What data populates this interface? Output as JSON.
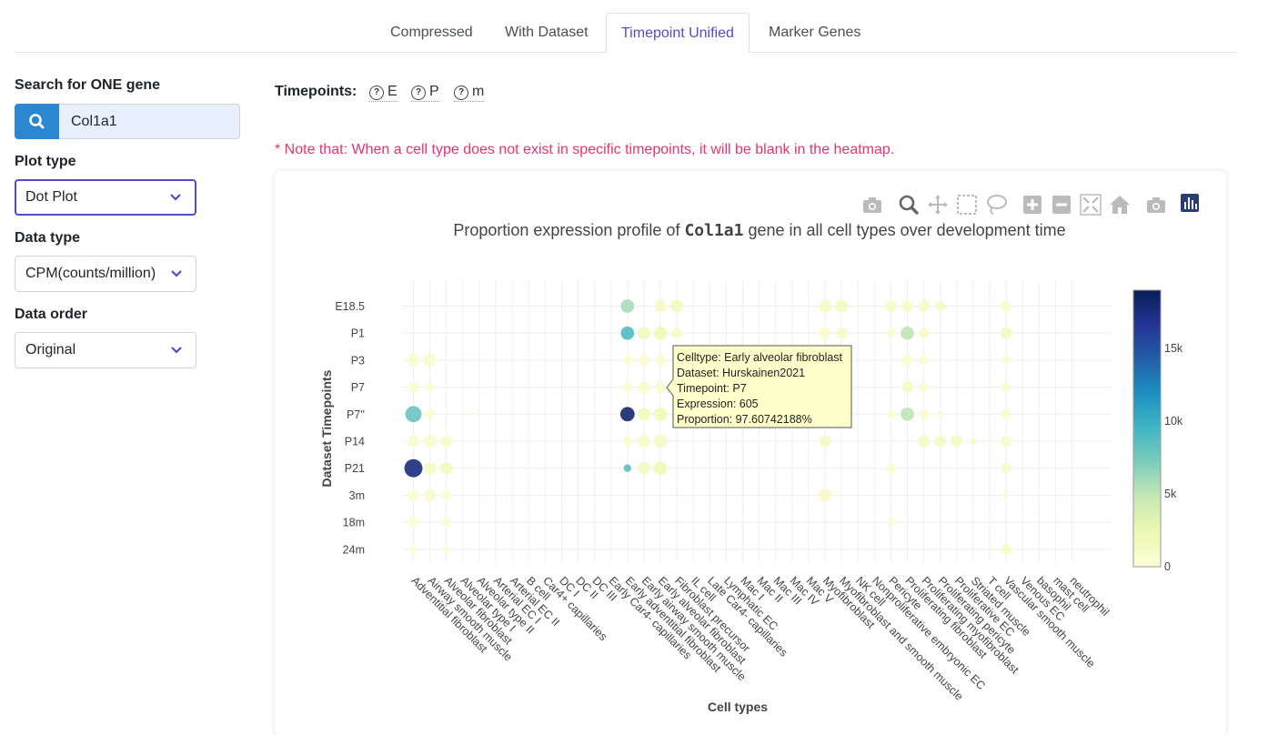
{
  "tabs": [
    "Compressed",
    "With Dataset",
    "Timepoint Unified",
    "Marker Genes"
  ],
  "active_tab": "Timepoint Unified",
  "sidebar": {
    "search_label": "Search for ONE gene",
    "search_value": "Col1a1",
    "plot_type_label": "Plot type",
    "plot_type_value": "Dot Plot",
    "data_type_label": "Data type",
    "data_type_value": "CPM(counts/million)",
    "data_order_label": "Data order",
    "data_order_value": "Original"
  },
  "timepoints": {
    "label": "Timepoints:",
    "items": [
      "E",
      "P",
      "m"
    ]
  },
  "note": "* Note that: When a cell type does not exist in specific timepoints, it will be blank in the heatmap.",
  "modebar_icons": [
    "camera-icon",
    "zoom-icon",
    "pan-icon",
    "box-select-icon",
    "lasso-icon",
    "zoom-in-icon",
    "zoom-out-icon",
    "autoscale-icon",
    "home-icon",
    "camera-icon",
    "plotly-logo-icon"
  ],
  "plot_title": {
    "prefix": "Proportion expression profile of ",
    "gene": "Col1a1",
    "suffix": " gene in all cell types over development time"
  },
  "tooltip": [
    "Celltype: Early alveolar fibroblast",
    "Dataset: Hurskainen2021",
    "Timepoint: P7",
    "Expression: 605",
    "Proportion: 97.60742188%"
  ],
  "chart_data": {
    "type": "scatter",
    "xlabel": "Cell types",
    "ylabel": "Dataset Timepoints",
    "categories": [
      "Adventitial fibroblast",
      "Airway smooth muscle",
      "Alveolar fibroblast",
      "Alveolar type I",
      "Alveolar type II",
      "Arterial EC I",
      "Arterial EC II",
      "B cell",
      "Car4+ capillaries",
      "DC I",
      "DC II",
      "DC III",
      "Early Car4- capillaries",
      "Early adventitial fibroblast",
      "Early airway smooth muscle",
      "Early alveolar fibroblast",
      "Fibroblast precursor",
      "IL cell",
      "Late Car4- capillaries",
      "Lymphatic EC",
      "Mac I",
      "Mac II",
      "Mac III",
      "Mac IV",
      "Mac V",
      "Myofibroblast",
      "Myofibroblast and smooth muscle",
      "NK cell",
      "Nonproliferative embryonic EC",
      "Pericyte",
      "Proliferating fibroblast",
      "Proliferating myofibroblast",
      "Proliferating pericyte",
      "Proliferative EC",
      "Striated muscle",
      "T cell",
      "Vascular smooth muscle",
      "Venous EC",
      "basophil",
      "mast cell",
      "neutrophil"
    ],
    "y_categories": [
      "E18.5",
      "P1",
      "P3",
      "P7",
      "P7''",
      "P14",
      "P21",
      "3m",
      "18m",
      "24m"
    ],
    "colorbar": {
      "min": 0,
      "max": 19000,
      "ticks": [
        0,
        5000,
        10000,
        15000
      ],
      "tick_labels": [
        "0",
        "5k",
        "10k",
        "15k"
      ]
    },
    "points": [
      {
        "x": "Adventitial fibroblast",
        "y": "P3",
        "size": 0.6,
        "value": 800
      },
      {
        "x": "Adventitial fibroblast",
        "y": "P7",
        "size": 0.55,
        "value": 700
      },
      {
        "x": "Adventitial fibroblast",
        "y": "P7''",
        "size": 0.85,
        "value": 8000
      },
      {
        "x": "Adventitial fibroblast",
        "y": "P14",
        "size": 0.6,
        "value": 900
      },
      {
        "x": "Adventitial fibroblast",
        "y": "P21",
        "size": 0.95,
        "value": 17500
      },
      {
        "x": "Adventitial fibroblast",
        "y": "3m",
        "size": 0.6,
        "value": 700
      },
      {
        "x": "Adventitial fibroblast",
        "y": "18m",
        "size": 0.5,
        "value": 600
      },
      {
        "x": "Adventitial fibroblast",
        "y": "24m",
        "size": 0.45,
        "value": 500
      },
      {
        "x": "Airway smooth muscle",
        "y": "P3",
        "size": 0.65,
        "value": 1000
      },
      {
        "x": "Airway smooth muscle",
        "y": "P7",
        "size": 0.45,
        "value": 600
      },
      {
        "x": "Airway smooth muscle",
        "y": "P7''",
        "size": 0.5,
        "value": 600
      },
      {
        "x": "Airway smooth muscle",
        "y": "P14",
        "size": 0.65,
        "value": 900
      },
      {
        "x": "Airway smooth muscle",
        "y": "P21",
        "size": 0.65,
        "value": 1500
      },
      {
        "x": "Airway smooth muscle",
        "y": "3m",
        "size": 0.6,
        "value": 900
      },
      {
        "x": "Alveolar fibroblast",
        "y": "P14",
        "size": 0.6,
        "value": 1000
      },
      {
        "x": "Alveolar fibroblast",
        "y": "P21",
        "size": 0.65,
        "value": 1600
      },
      {
        "x": "Alveolar fibroblast",
        "y": "3m",
        "size": 0.5,
        "value": 700
      },
      {
        "x": "Alveolar fibroblast",
        "y": "18m",
        "size": 0.45,
        "value": 600
      },
      {
        "x": "Alveolar fibroblast",
        "y": "24m",
        "size": 0.35,
        "value": 500
      },
      {
        "x": "Alveolar type II",
        "y": "P7''",
        "size": 0.2,
        "value": 600
      },
      {
        "x": "Alveolar type II",
        "y": "P21",
        "size": 0.15,
        "value": 500
      },
      {
        "x": "Early adventitial fibroblast",
        "y": "E18.5",
        "size": 0.7,
        "value": 5800
      },
      {
        "x": "Early adventitial fibroblast",
        "y": "P1",
        "size": 0.7,
        "value": 9000
      },
      {
        "x": "Early adventitial fibroblast",
        "y": "P3",
        "size": 0.5,
        "value": 800
      },
      {
        "x": "Early adventitial fibroblast",
        "y": "P7",
        "size": 0.5,
        "value": 800
      },
      {
        "x": "Early adventitial fibroblast",
        "y": "P7''",
        "size": 0.75,
        "value": 18000
      },
      {
        "x": "Early adventitial fibroblast",
        "y": "P14",
        "size": 0.5,
        "value": 700
      },
      {
        "x": "Early adventitial fibroblast",
        "y": "P21",
        "size": 0.4,
        "value": 8500
      },
      {
        "x": "Early airway smooth muscle",
        "y": "P1",
        "size": 0.65,
        "value": 1800
      },
      {
        "x": "Early airway smooth muscle",
        "y": "P3",
        "size": 0.55,
        "value": 800
      },
      {
        "x": "Early airway smooth muscle",
        "y": "P7",
        "size": 0.6,
        "value": 900
      },
      {
        "x": "Early airway smooth muscle",
        "y": "P7''",
        "size": 0.65,
        "value": 1800
      },
      {
        "x": "Early airway smooth muscle",
        "y": "P14",
        "size": 0.65,
        "value": 1000
      },
      {
        "x": "Early airway smooth muscle",
        "y": "P21",
        "size": 0.65,
        "value": 1500
      },
      {
        "x": "Early alveolar fibroblast",
        "y": "E18.5",
        "size": 0.65,
        "value": 1200
      },
      {
        "x": "Early alveolar fibroblast",
        "y": "P1",
        "size": 0.7,
        "value": 2200
      },
      {
        "x": "Early alveolar fibroblast",
        "y": "P3",
        "size": 0.55,
        "value": 700
      },
      {
        "x": "Early alveolar fibroblast",
        "y": "P7",
        "size": 0.6,
        "value": 605
      },
      {
        "x": "Early alveolar fibroblast",
        "y": "P7''",
        "size": 0.7,
        "value": 2200
      },
      {
        "x": "Early alveolar fibroblast",
        "y": "P14",
        "size": 0.7,
        "value": 1200
      },
      {
        "x": "Early alveolar fibroblast",
        "y": "P21",
        "size": 0.7,
        "value": 2000
      },
      {
        "x": "Fibroblast precursor",
        "y": "E18.5",
        "size": 0.65,
        "value": 1500
      },
      {
        "x": "Fibroblast precursor",
        "y": "P1",
        "size": 0.55,
        "value": 1000
      },
      {
        "x": "Myofibroblast",
        "y": "E18.5",
        "size": 0.65,
        "value": 1200
      },
      {
        "x": "Myofibroblast",
        "y": "P1",
        "size": 0.6,
        "value": 900
      },
      {
        "x": "Myofibroblast",
        "y": "P14",
        "size": 0.6,
        "value": 1200
      },
      {
        "x": "Myofibroblast",
        "y": "3m",
        "size": 0.65,
        "value": 1200
      },
      {
        "x": "Myofibroblast and smooth muscle",
        "y": "E18.5",
        "size": 0.65,
        "value": 1500
      },
      {
        "x": "Myofibroblast and smooth muscle",
        "y": "P1",
        "size": 0.6,
        "value": 1000
      },
      {
        "x": "Pericyte",
        "y": "E18.5",
        "size": 0.6,
        "value": 1000
      },
      {
        "x": "Pericyte",
        "y": "P1",
        "size": 0.45,
        "value": 800
      },
      {
        "x": "Pericyte",
        "y": "P7''",
        "size": 0.45,
        "value": 800
      },
      {
        "x": "Pericyte",
        "y": "P21",
        "size": 0.5,
        "value": 700
      },
      {
        "x": "Pericyte",
        "y": "18m",
        "size": 0.4,
        "value": 600
      },
      {
        "x": "Proliferating fibroblast",
        "y": "E18.5",
        "size": 0.6,
        "value": 1000
      },
      {
        "x": "Proliferating fibroblast",
        "y": "P1",
        "size": 0.7,
        "value": 5000
      },
      {
        "x": "Proliferating fibroblast",
        "y": "P3",
        "size": 0.55,
        "value": 800
      },
      {
        "x": "Proliferating fibroblast",
        "y": "P7",
        "size": 0.6,
        "value": 1200
      },
      {
        "x": "Proliferating fibroblast",
        "y": "P7''",
        "size": 0.7,
        "value": 5000
      },
      {
        "x": "Proliferating myofibroblast",
        "y": "E18.5",
        "size": 0.6,
        "value": 1200
      },
      {
        "x": "Proliferating myofibroblast",
        "y": "P1",
        "size": 0.55,
        "value": 1000
      },
      {
        "x": "Proliferating myofibroblast",
        "y": "P3",
        "size": 0.5,
        "value": 800
      },
      {
        "x": "Proliferating myofibroblast",
        "y": "P7",
        "size": 0.5,
        "value": 800
      },
      {
        "x": "Proliferating myofibroblast",
        "y": "P7''",
        "size": 0.5,
        "value": 900
      },
      {
        "x": "Proliferating myofibroblast",
        "y": "P14",
        "size": 0.6,
        "value": 1400
      },
      {
        "x": "Proliferating pericyte",
        "y": "E18.5",
        "size": 0.55,
        "value": 1200
      },
      {
        "x": "Proliferating pericyte",
        "y": "P7''",
        "size": 0.35,
        "value": 800
      },
      {
        "x": "Proliferating pericyte",
        "y": "P14",
        "size": 0.6,
        "value": 1500
      },
      {
        "x": "Proliferative EC",
        "y": "P14",
        "size": 0.6,
        "value": 1500
      },
      {
        "x": "Striated muscle",
        "y": "P14",
        "size": 0.35,
        "value": 1300
      },
      {
        "x": "Vascular smooth muscle",
        "y": "E18.5",
        "size": 0.55,
        "value": 900
      },
      {
        "x": "Vascular smooth muscle",
        "y": "P1",
        "size": 0.6,
        "value": 1400
      },
      {
        "x": "Vascular smooth muscle",
        "y": "P3",
        "size": 0.45,
        "value": 700
      },
      {
        "x": "Vascular smooth muscle",
        "y": "P7",
        "size": 0.5,
        "value": 800
      },
      {
        "x": "Vascular smooth muscle",
        "y": "P7''",
        "size": 0.5,
        "value": 900
      },
      {
        "x": "Vascular smooth muscle",
        "y": "P14",
        "size": 0.55,
        "value": 1000
      },
      {
        "x": "Vascular smooth muscle",
        "y": "P21",
        "size": 0.55,
        "value": 1000
      },
      {
        "x": "Vascular smooth muscle",
        "y": "3m",
        "size": 0.3,
        "value": 700
      },
      {
        "x": "Vascular smooth muscle",
        "y": "24m",
        "size": 0.55,
        "value": 1300
      }
    ]
  },
  "colors": {
    "accent": "#4c4fc9",
    "search_button": "#2b87d1",
    "note": "#e8336e",
    "colorscale": [
      "#ffffd9",
      "#edf8b1",
      "#c7e9b4",
      "#7fcdbb",
      "#41b6c4",
      "#1d91c0",
      "#225ea8",
      "#253494",
      "#081d58"
    ]
  }
}
